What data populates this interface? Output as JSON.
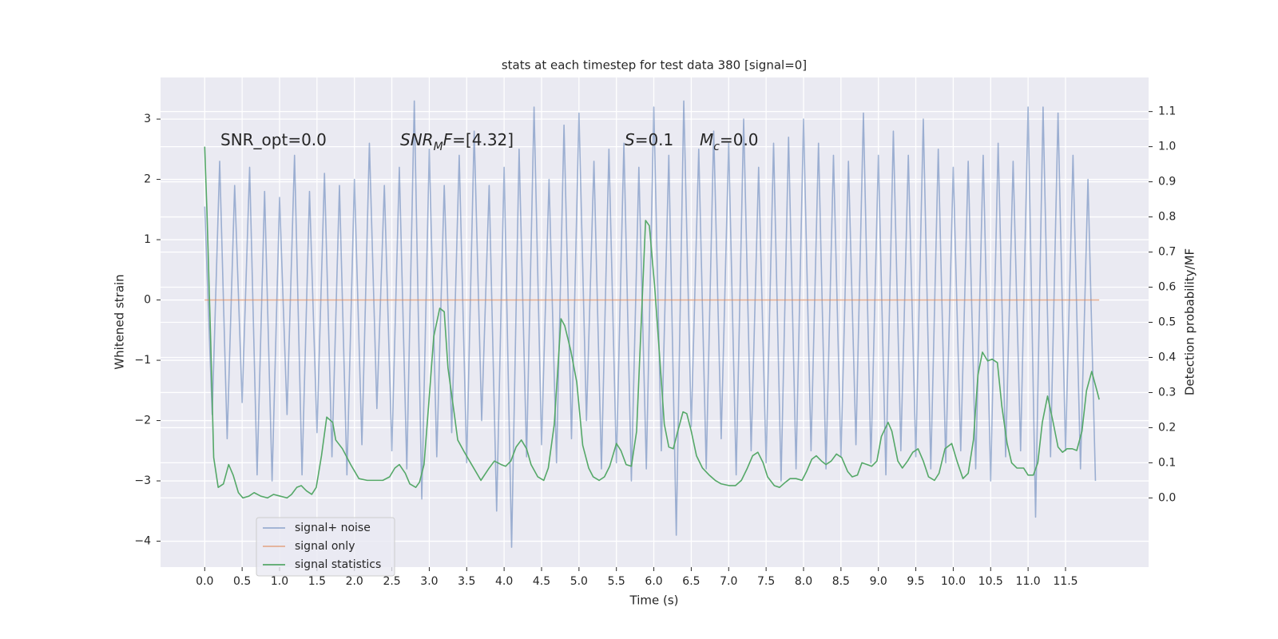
{
  "chart_data": {
    "type": "line",
    "title": "stats at each timestep for test data 380 [signal=0]",
    "xlabel": "Time (s)",
    "ylabel": "Whitened strain",
    "y2label": "Detection probability/MF",
    "xlim": [
      -0.59,
      12.61
    ],
    "ylim": [
      -4.43,
      3.69
    ],
    "y2lim": [
      -0.197,
      1.197
    ],
    "xticks": [
      {
        "value": 0,
        "label": "0.0"
      },
      {
        "value": 0.5,
        "label": "0.5"
      },
      {
        "value": 1,
        "label": "1.0"
      },
      {
        "value": 1.5,
        "label": "1.5"
      },
      {
        "value": 2,
        "label": "2.0"
      },
      {
        "value": 2.5,
        "label": "2.5"
      },
      {
        "value": 3,
        "label": "3.0"
      },
      {
        "value": 3.5,
        "label": "3.5"
      },
      {
        "value": 4,
        "label": "4.0"
      },
      {
        "value": 4.5,
        "label": "4.5"
      },
      {
        "value": 5,
        "label": "5.0"
      },
      {
        "value": 5.5,
        "label": "5.5"
      },
      {
        "value": 6,
        "label": "6.0"
      },
      {
        "value": 6.5,
        "label": "6.5"
      },
      {
        "value": 7,
        "label": "7.0"
      },
      {
        "value": 7.5,
        "label": "7.5"
      },
      {
        "value": 8,
        "label": "8.0"
      },
      {
        "value": 8.5,
        "label": "8.5"
      },
      {
        "value": 9,
        "label": "9.0"
      },
      {
        "value": 9.5,
        "label": "9.5"
      },
      {
        "value": 10,
        "label": "10.0"
      },
      {
        "value": 10.5,
        "label": "10.5"
      },
      {
        "value": 11,
        "label": "11.0"
      },
      {
        "value": 11.5,
        "label": "11.5"
      }
    ],
    "yticks": [
      {
        "value": -4,
        "label": "−4"
      },
      {
        "value": -3,
        "label": "−3"
      },
      {
        "value": -2,
        "label": "−2"
      },
      {
        "value": -1,
        "label": "−1"
      },
      0,
      1,
      2,
      3
    ],
    "y2ticks": [
      {
        "value": 0,
        "label": "0.0"
      },
      {
        "value": 0.1,
        "label": "0.1"
      },
      {
        "value": 0.2,
        "label": "0.2"
      },
      {
        "value": 0.3,
        "label": "0.3"
      },
      {
        "value": 0.4,
        "label": "0.4"
      },
      {
        "value": 0.5,
        "label": "0.5"
      },
      {
        "value": 0.6,
        "label": "0.6"
      },
      {
        "value": 0.7,
        "label": "0.7"
      },
      {
        "value": 0.8,
        "label": "0.8"
      },
      {
        "value": 0.9,
        "label": "0.9"
      },
      {
        "value": 1,
        "label": "1.0"
      },
      {
        "value": 1.1,
        "label": "1.1"
      }
    ],
    "grid": true,
    "legend": "lower left",
    "annotations": [
      {
        "parts": [
          {
            "text": "SNR_opt=0.0"
          }
        ]
      },
      {
        "parts": [
          {
            "text": "SNR",
            "style": "italic"
          },
          {
            "text": "M",
            "style": "italic-sub"
          },
          {
            "text": "F",
            "style": "italic"
          },
          {
            "text": "=[4.32]"
          }
        ]
      },
      {
        "parts": [
          {
            "text": "S",
            "style": "italic"
          },
          {
            "text": "=0.1"
          }
        ]
      },
      {
        "parts": [
          {
            "text": "M",
            "style": "italic"
          },
          {
            "text": "c",
            "style": "italic-sub"
          },
          {
            "text": "=0.0"
          }
        ]
      }
    ],
    "series": [
      {
        "name": "signal+ noise",
        "color": "#4c72b0",
        "opacity": 0.5,
        "x": [
          0,
          0.1,
          0.2,
          0.3,
          0.4,
          0.5,
          0.6,
          0.7,
          0.8,
          0.9,
          1,
          1.1,
          1.2,
          1.3,
          1.4,
          1.5,
          1.6,
          1.7,
          1.8,
          1.9,
          2,
          2.1,
          2.2,
          2.3,
          2.4,
          2.5,
          2.6,
          2.7,
          2.8,
          2.9,
          3,
          3.1,
          3.2,
          3.3,
          3.4,
          3.5,
          3.6,
          3.7,
          3.8,
          3.9,
          4,
          4.1,
          4.2,
          4.3,
          4.4,
          4.5,
          4.6,
          4.7,
          4.8,
          4.9,
          5,
          5.1,
          5.2,
          5.3,
          5.4,
          5.5,
          5.6,
          5.7,
          5.8,
          5.9,
          6,
          6.1,
          6.2,
          6.3,
          6.4,
          6.5,
          6.6,
          6.7,
          6.8,
          6.9,
          7,
          7.1,
          7.2,
          7.3,
          7.4,
          7.5,
          7.6,
          7.7,
          7.8,
          7.9,
          8,
          8.1,
          8.2,
          8.3,
          8.4,
          8.5,
          8.6,
          8.7,
          8.8,
          8.9,
          9,
          9.1,
          9.2,
          9.3,
          9.4,
          9.5,
          9.6,
          9.7,
          9.8,
          9.9,
          10,
          10.1,
          10.2,
          10.3,
          10.4,
          10.5,
          10.6,
          10.7,
          10.8,
          10.9,
          11,
          11.1,
          11.2,
          11.3,
          11.4,
          11.5,
          11.6,
          11.7,
          11.8,
          11.9
        ],
        "values": [
          1.55,
          -1.9,
          2.3,
          -2.3,
          1.9,
          -1.7,
          2.2,
          -2.9,
          1.8,
          -3.0,
          1.7,
          -1.9,
          2.4,
          -2.9,
          1.8,
          -2.2,
          2.1,
          -2.6,
          1.9,
          -2.9,
          2.0,
          -2.4,
          2.6,
          -1.8,
          1.9,
          -2.5,
          2.2,
          -2.8,
          3.3,
          -3.3,
          2.5,
          -2.6,
          1.9,
          -2.2,
          2.4,
          -2.7,
          2.8,
          -2.0,
          1.9,
          -3.5,
          2.2,
          -4.1,
          2.5,
          -2.6,
          3.2,
          -2.4,
          2.0,
          -2.7,
          2.9,
          -2.3,
          3.1,
          -2.0,
          2.3,
          -2.8,
          2.5,
          -2.7,
          2.6,
          -3.0,
          2.2,
          -2.8,
          3.2,
          -2.5,
          2.4,
          -3.9,
          3.3,
          -2.1,
          2.5,
          -2.8,
          2.8,
          -2.3,
          2.6,
          -2.9,
          3.0,
          -2.5,
          2.2,
          -2.7,
          2.6,
          -3.0,
          2.7,
          -2.8,
          3.0,
          -2.5,
          2.6,
          -2.8,
          2.4,
          -2.6,
          2.3,
          -2.4,
          3.1,
          -2.7,
          2.4,
          -2.9,
          2.8,
          -2.5,
          2.4,
          -2.6,
          3.0,
          -2.8,
          2.5,
          -2.7,
          2.2,
          -2.5,
          2.3,
          -2.8,
          2.4,
          -3.0,
          2.6,
          -2.6,
          2.3,
          -2.5,
          3.2,
          -3.6,
          3.2,
          -2.6,
          3.1,
          -2.5,
          2.4,
          -2.8,
          2.0,
          -3.0
        ]
      },
      {
        "name": "signal only",
        "color": "#dd8452",
        "opacity": 0.6,
        "x": [
          0,
          11.95
        ],
        "values": [
          0,
          0
        ]
      },
      {
        "name": "signal statistics",
        "color": "#55a868",
        "axis": "y2",
        "x": [
          0,
          0.03,
          0.08,
          0.12,
          0.18,
          0.25,
          0.32,
          0.38,
          0.45,
          0.51,
          0.59,
          0.66,
          0.75,
          0.84,
          0.92,
          1.01,
          1.1,
          1.16,
          1.23,
          1.29,
          1.36,
          1.43,
          1.49,
          1.56,
          1.63,
          1.71,
          1.75,
          1.84,
          1.95,
          2.06,
          2.17,
          2.27,
          2.38,
          2.47,
          2.54,
          2.6,
          2.68,
          2.74,
          2.82,
          2.87,
          2.93,
          2.99,
          3.06,
          3.14,
          3.2,
          3.25,
          3.34,
          3.38,
          3.47,
          3.58,
          3.69,
          3.8,
          3.87,
          3.96,
          4.02,
          4.09,
          4.16,
          4.23,
          4.3,
          4.36,
          4.45,
          4.53,
          4.59,
          4.67,
          4.76,
          4.81,
          4.89,
          4.97,
          5.05,
          5.13,
          5.19,
          5.27,
          5.34,
          5.41,
          5.5,
          5.56,
          5.63,
          5.7,
          5.77,
          5.82,
          5.89,
          5.94,
          6.01,
          6.08,
          6.14,
          6.2,
          6.26,
          6.32,
          6.39,
          6.44,
          6.5,
          6.57,
          6.65,
          6.74,
          6.82,
          6.9,
          7.01,
          7.09,
          7.17,
          7.25,
          7.32,
          7.39,
          7.46,
          7.52,
          7.61,
          7.68,
          7.76,
          7.82,
          7.9,
          7.98,
          8.04,
          8.11,
          8.17,
          8.24,
          8.3,
          8.37,
          8.44,
          8.51,
          8.59,
          8.65,
          8.72,
          8.78,
          8.85,
          8.91,
          8.98,
          9.04,
          9.13,
          9.18,
          9.26,
          9.32,
          9.39,
          9.46,
          9.53,
          9.6,
          9.67,
          9.75,
          9.81,
          9.89,
          9.98,
          10.05,
          10.13,
          10.2,
          10.27,
          10.33,
          10.39,
          10.46,
          10.52,
          10.59,
          10.65,
          10.72,
          10.78,
          10.85,
          10.94,
          11.0,
          11.07,
          11.13,
          11.19,
          11.26,
          11.33,
          11.4,
          11.46,
          11.52,
          11.59,
          11.65,
          11.72,
          11.78,
          11.85,
          11.92,
          11.95
        ],
        "values": [
          1.0,
          0.815,
          0.445,
          0.115,
          0.03,
          0.04,
          0.095,
          0.065,
          0.015,
          0.0,
          0.005,
          0.015,
          0.005,
          0.0,
          0.01,
          0.005,
          0.0,
          0.01,
          0.03,
          0.035,
          0.02,
          0.01,
          0.03,
          0.12,
          0.23,
          0.215,
          0.165,
          0.14,
          0.095,
          0.055,
          0.05,
          0.05,
          0.05,
          0.06,
          0.085,
          0.095,
          0.07,
          0.04,
          0.03,
          0.045,
          0.095,
          0.26,
          0.46,
          0.54,
          0.53,
          0.37,
          0.23,
          0.165,
          0.13,
          0.09,
          0.05,
          0.085,
          0.105,
          0.095,
          0.09,
          0.105,
          0.145,
          0.165,
          0.14,
          0.095,
          0.06,
          0.05,
          0.085,
          0.21,
          0.51,
          0.49,
          0.42,
          0.33,
          0.15,
          0.085,
          0.06,
          0.05,
          0.06,
          0.09,
          0.155,
          0.135,
          0.095,
          0.09,
          0.19,
          0.44,
          0.79,
          0.775,
          0.605,
          0.395,
          0.21,
          0.145,
          0.14,
          0.19,
          0.245,
          0.24,
          0.19,
          0.12,
          0.085,
          0.065,
          0.05,
          0.04,
          0.035,
          0.035,
          0.05,
          0.085,
          0.12,
          0.13,
          0.1,
          0.06,
          0.035,
          0.03,
          0.045,
          0.055,
          0.055,
          0.05,
          0.075,
          0.11,
          0.12,
          0.105,
          0.095,
          0.105,
          0.125,
          0.115,
          0.075,
          0.06,
          0.065,
          0.1,
          0.095,
          0.09,
          0.105,
          0.175,
          0.215,
          0.19,
          0.105,
          0.085,
          0.105,
          0.13,
          0.14,
          0.105,
          0.06,
          0.05,
          0.07,
          0.14,
          0.155,
          0.105,
          0.055,
          0.07,
          0.165,
          0.35,
          0.415,
          0.39,
          0.395,
          0.385,
          0.26,
          0.155,
          0.1,
          0.085,
          0.085,
          0.065,
          0.065,
          0.1,
          0.215,
          0.29,
          0.22,
          0.145,
          0.13,
          0.14,
          0.14,
          0.135,
          0.19,
          0.305,
          0.36,
          0.305,
          0.28
        ]
      }
    ]
  }
}
